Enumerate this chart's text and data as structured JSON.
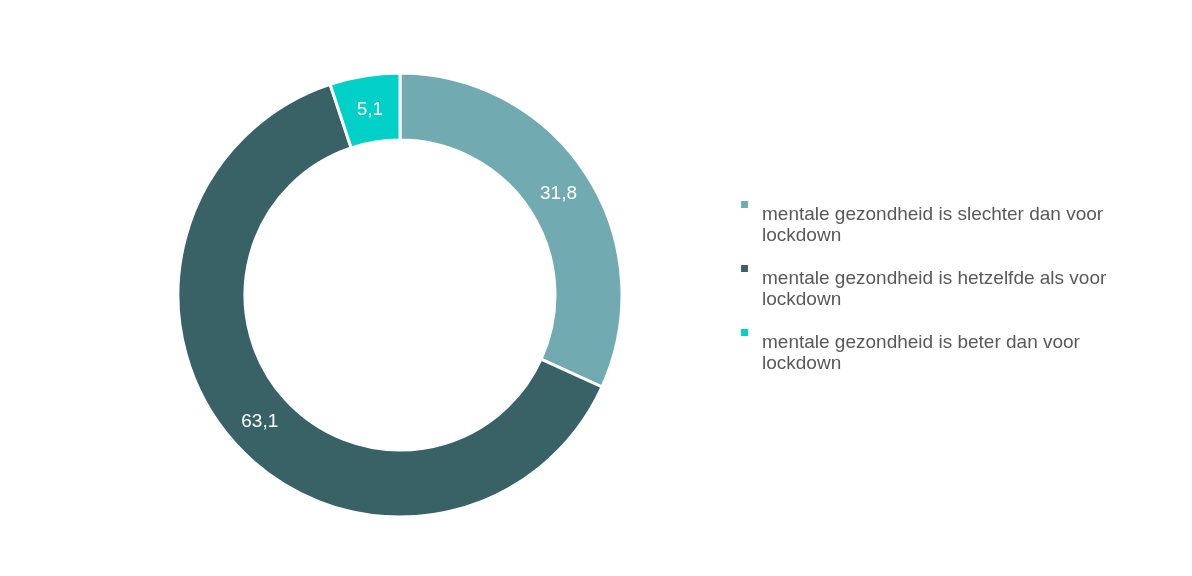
{
  "chart_data": {
    "type": "donut",
    "categories": [
      "mentale gezondheid is slechter dan voor lockdown",
      "mentale gezondheid is hetzelfde als voor lockdown",
      "mentale gezondheid is beter dan voor lockdown"
    ],
    "values": [
      31.8,
      63.1,
      5.1
    ],
    "colors": [
      "#71aab1",
      "#396266",
      "#00d0c8"
    ],
    "value_labels": [
      "31,8",
      "63,1",
      "5,1"
    ],
    "legend": "right"
  }
}
